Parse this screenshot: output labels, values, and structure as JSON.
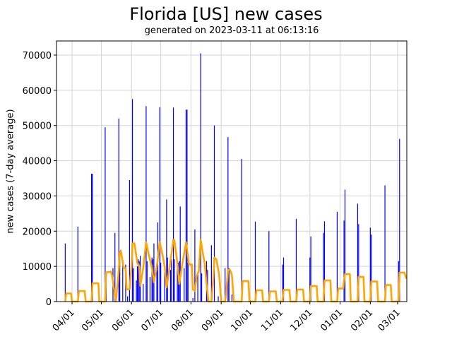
{
  "chart_data": {
    "type": "bar",
    "title": "Florida [US] new cases",
    "subtitle": "generated on 2023-03-11 at 06:13:16",
    "xlabel": "",
    "ylabel": "new cases (7-day average)",
    "ylim": [
      0,
      74000
    ],
    "grid": true,
    "legend": null,
    "x_ticks": [
      "04/01",
      "05/01",
      "06/01",
      "07/01",
      "08/01",
      "09/01",
      "10/01",
      "11/01",
      "12/01",
      "01/01",
      "02/01",
      "03/01"
    ],
    "y_ticks": [
      0,
      10000,
      20000,
      30000,
      40000,
      50000,
      60000,
      70000
    ],
    "x_range": [
      "2022-03-18",
      "2023-03-10"
    ],
    "series": [
      {
        "name": "new cases",
        "type": "bar",
        "color": "#0000ff",
        "points": [
          {
            "x": "2022-03-25",
            "y": 16500
          },
          {
            "x": "2022-04-07",
            "y": 21300
          },
          {
            "x": "2022-04-21",
            "y": 36300
          },
          {
            "x": "2022-04-22",
            "y": 36300
          },
          {
            "x": "2022-04-29",
            "y": 1000
          },
          {
            "x": "2022-05-05",
            "y": 49500
          },
          {
            "x": "2022-05-06",
            "y": 8000
          },
          {
            "x": "2022-05-13",
            "y": 9500
          },
          {
            "x": "2022-05-15",
            "y": 19500
          },
          {
            "x": "2022-05-19",
            "y": 52000
          },
          {
            "x": "2022-05-20",
            "y": 12000
          },
          {
            "x": "2022-05-23",
            "y": 11000
          },
          {
            "x": "2022-05-26",
            "y": 10500
          },
          {
            "x": "2022-05-28",
            "y": 1500
          },
          {
            "x": "2022-05-30",
            "y": 34500
          },
          {
            "x": "2022-06-02",
            "y": 57500
          },
          {
            "x": "2022-06-03",
            "y": 9500
          },
          {
            "x": "2022-06-06",
            "y": 6000
          },
          {
            "x": "2022-06-07",
            "y": 10000
          },
          {
            "x": "2022-06-08",
            "y": 12000
          },
          {
            "x": "2022-06-09",
            "y": 11500
          },
          {
            "x": "2022-06-10",
            "y": 13000
          },
          {
            "x": "2022-06-13",
            "y": 5000
          },
          {
            "x": "2022-06-16",
            "y": 55500
          },
          {
            "x": "2022-06-17",
            "y": 11500
          },
          {
            "x": "2022-06-20",
            "y": 7000
          },
          {
            "x": "2022-06-22",
            "y": 12500
          },
          {
            "x": "2022-06-23",
            "y": 12000
          },
          {
            "x": "2022-06-24",
            "y": 16500
          },
          {
            "x": "2022-06-27",
            "y": 9000
          },
          {
            "x": "2022-06-28",
            "y": 22500
          },
          {
            "x": "2022-06-30",
            "y": 55200
          },
          {
            "x": "2022-07-01",
            "y": 11000
          },
          {
            "x": "2022-07-05",
            "y": 9500
          },
          {
            "x": "2022-07-07",
            "y": 29000
          },
          {
            "x": "2022-07-08",
            "y": 12500
          },
          {
            "x": "2022-07-11",
            "y": 9000
          },
          {
            "x": "2022-07-12",
            "y": 12000
          },
          {
            "x": "2022-07-14",
            "y": 55100
          },
          {
            "x": "2022-07-15",
            "y": 12000
          },
          {
            "x": "2022-07-18",
            "y": 11500
          },
          {
            "x": "2022-07-19",
            "y": 11000
          },
          {
            "x": "2022-07-20",
            "y": 11500
          },
          {
            "x": "2022-07-21",
            "y": 27000
          },
          {
            "x": "2022-07-25",
            "y": 9500
          },
          {
            "x": "2022-07-27",
            "y": 54500
          },
          {
            "x": "2022-07-28",
            "y": 54500
          },
          {
            "x": "2022-07-29",
            "y": 11000
          },
          {
            "x": "2022-08-03",
            "y": 1000
          },
          {
            "x": "2022-08-05",
            "y": 20500
          },
          {
            "x": "2022-08-08",
            "y": 8500
          },
          {
            "x": "2022-08-11",
            "y": 70500
          },
          {
            "x": "2022-08-12",
            "y": 8000
          },
          {
            "x": "2022-08-17",
            "y": 11500
          },
          {
            "x": "2022-08-18",
            "y": 9000
          },
          {
            "x": "2022-08-22",
            "y": 16000
          },
          {
            "x": "2022-08-25",
            "y": 50000
          },
          {
            "x": "2022-08-29",
            "y": 1500
          },
          {
            "x": "2022-09-05",
            "y": 9500
          },
          {
            "x": "2022-09-08",
            "y": 46700
          },
          {
            "x": "2022-09-09",
            "y": 9500
          },
          {
            "x": "2022-09-12",
            "y": 2000
          },
          {
            "x": "2022-09-22",
            "y": 40500
          },
          {
            "x": "2022-10-06",
            "y": 22700
          },
          {
            "x": "2022-10-20",
            "y": 20000
          },
          {
            "x": "2022-11-03",
            "y": 10500
          },
          {
            "x": "2022-11-04",
            "y": 12500
          },
          {
            "x": "2022-11-17",
            "y": 23500
          },
          {
            "x": "2022-12-01",
            "y": 12500
          },
          {
            "x": "2022-12-02",
            "y": 18500
          },
          {
            "x": "2022-12-15",
            "y": 19500
          },
          {
            "x": "2022-12-16",
            "y": 22800
          },
          {
            "x": "2022-12-29",
            "y": 25500
          },
          {
            "x": "2023-01-05",
            "y": 23000
          },
          {
            "x": "2023-01-06",
            "y": 31800
          },
          {
            "x": "2023-01-19",
            "y": 27800
          },
          {
            "x": "2023-01-20",
            "y": 22000
          },
          {
            "x": "2023-02-01",
            "y": 21000
          },
          {
            "x": "2023-02-02",
            "y": 19000
          },
          {
            "x": "2023-02-16",
            "y": 33000
          },
          {
            "x": "2023-03-02",
            "y": 11500
          },
          {
            "x": "2023-03-03",
            "y": 46200
          }
        ]
      },
      {
        "name": "7-day average",
        "type": "line",
        "color": "#ffa500",
        "points": [
          {
            "x": "2022-03-25",
            "y": 0
          },
          {
            "x": "2022-03-26",
            "y": 2300
          },
          {
            "x": "2022-03-31",
            "y": 2300
          },
          {
            "x": "2022-04-01",
            "y": 0
          },
          {
            "x": "2022-04-07",
            "y": 0
          },
          {
            "x": "2022-04-08",
            "y": 3000
          },
          {
            "x": "2022-04-14",
            "y": 3000
          },
          {
            "x": "2022-04-15",
            "y": 0
          },
          {
            "x": "2022-04-21",
            "y": 0
          },
          {
            "x": "2022-04-22",
            "y": 5200
          },
          {
            "x": "2022-04-28",
            "y": 5200
          },
          {
            "x": "2022-04-29",
            "y": 0
          },
          {
            "x": "2022-05-05",
            "y": 0
          },
          {
            "x": "2022-05-06",
            "y": 8300
          },
          {
            "x": "2022-05-11",
            "y": 8500
          },
          {
            "x": "2022-05-12",
            "y": 7500
          },
          {
            "x": "2022-05-16",
            "y": 0
          },
          {
            "x": "2022-05-19",
            "y": 9000
          },
          {
            "x": "2022-05-20",
            "y": 14000
          },
          {
            "x": "2022-05-21",
            "y": 14500
          },
          {
            "x": "2022-05-24",
            "y": 9500
          },
          {
            "x": "2022-05-26",
            "y": 9500
          },
          {
            "x": "2022-05-27",
            "y": 3500
          },
          {
            "x": "2022-05-30",
            "y": 3500
          },
          {
            "x": "2022-06-01",
            "y": 10000
          },
          {
            "x": "2022-06-02",
            "y": 16500
          },
          {
            "x": "2022-06-04",
            "y": 16500
          },
          {
            "x": "2022-06-07",
            "y": 11000
          },
          {
            "x": "2022-06-09",
            "y": 10000
          },
          {
            "x": "2022-06-10",
            "y": 4500
          },
          {
            "x": "2022-06-13",
            "y": 9500
          },
          {
            "x": "2022-06-16",
            "y": 16800
          },
          {
            "x": "2022-06-19",
            "y": 13000
          },
          {
            "x": "2022-06-22",
            "y": 9500
          },
          {
            "x": "2022-06-24",
            "y": 5500
          },
          {
            "x": "2022-06-27",
            "y": 10000
          },
          {
            "x": "2022-06-30",
            "y": 16800
          },
          {
            "x": "2022-07-03",
            "y": 13000
          },
          {
            "x": "2022-07-05",
            "y": 10000
          },
          {
            "x": "2022-07-07",
            "y": 4000
          },
          {
            "x": "2022-07-10",
            "y": 9500
          },
          {
            "x": "2022-07-14",
            "y": 17500
          },
          {
            "x": "2022-07-15",
            "y": 17500
          },
          {
            "x": "2022-07-18",
            "y": 11000
          },
          {
            "x": "2022-07-20",
            "y": 5000
          },
          {
            "x": "2022-07-23",
            "y": 10500
          },
          {
            "x": "2022-07-27",
            "y": 16800
          },
          {
            "x": "2022-07-30",
            "y": 10500
          },
          {
            "x": "2022-08-02",
            "y": 10500
          },
          {
            "x": "2022-08-03",
            "y": 3500
          },
          {
            "x": "2022-08-05",
            "y": 3000
          },
          {
            "x": "2022-08-07",
            "y": 7500
          },
          {
            "x": "2022-08-09",
            "y": 8500
          },
          {
            "x": "2022-08-11",
            "y": 17500
          },
          {
            "x": "2022-08-13",
            "y": 14000
          },
          {
            "x": "2022-08-15",
            "y": 11000
          },
          {
            "x": "2022-08-17",
            "y": 5000
          },
          {
            "x": "2022-08-19",
            "y": 0
          },
          {
            "x": "2022-08-22",
            "y": 0
          },
          {
            "x": "2022-08-24",
            "y": 7000
          },
          {
            "x": "2022-08-25",
            "y": 12500
          },
          {
            "x": "2022-08-27",
            "y": 12000
          },
          {
            "x": "2022-08-30",
            "y": 7500
          },
          {
            "x": "2022-09-01",
            "y": 0
          },
          {
            "x": "2022-09-05",
            "y": 0
          },
          {
            "x": "2022-09-06",
            "y": 2000
          },
          {
            "x": "2022-09-08",
            "y": 9000
          },
          {
            "x": "2022-09-10",
            "y": 9000
          },
          {
            "x": "2022-09-12",
            "y": 7500
          },
          {
            "x": "2022-09-14",
            "y": 0
          },
          {
            "x": "2022-09-22",
            "y": 0
          },
          {
            "x": "2022-09-23",
            "y": 5800
          },
          {
            "x": "2022-09-29",
            "y": 5800
          },
          {
            "x": "2022-09-30",
            "y": 0
          },
          {
            "x": "2022-10-06",
            "y": 0
          },
          {
            "x": "2022-10-07",
            "y": 3200
          },
          {
            "x": "2022-10-13",
            "y": 3200
          },
          {
            "x": "2022-10-14",
            "y": 0
          },
          {
            "x": "2022-10-20",
            "y": 0
          },
          {
            "x": "2022-10-21",
            "y": 2900
          },
          {
            "x": "2022-10-27",
            "y": 2900
          },
          {
            "x": "2022-10-28",
            "y": 0
          },
          {
            "x": "2022-11-03",
            "y": 0
          },
          {
            "x": "2022-11-04",
            "y": 3300
          },
          {
            "x": "2022-11-10",
            "y": 3300
          },
          {
            "x": "2022-11-11",
            "y": 0
          },
          {
            "x": "2022-11-17",
            "y": 0
          },
          {
            "x": "2022-11-18",
            "y": 3400
          },
          {
            "x": "2022-11-24",
            "y": 3400
          },
          {
            "x": "2022-11-25",
            "y": 0
          },
          {
            "x": "2022-12-01",
            "y": 0
          },
          {
            "x": "2022-12-02",
            "y": 4400
          },
          {
            "x": "2022-12-08",
            "y": 4400
          },
          {
            "x": "2022-12-09",
            "y": 0
          },
          {
            "x": "2022-12-15",
            "y": 0
          },
          {
            "x": "2022-12-16",
            "y": 6000
          },
          {
            "x": "2022-12-22",
            "y": 6000
          },
          {
            "x": "2022-12-23",
            "y": 0
          },
          {
            "x": "2022-12-29",
            "y": 0
          },
          {
            "x": "2022-12-30",
            "y": 3700
          },
          {
            "x": "2023-01-04",
            "y": 3700
          },
          {
            "x": "2023-01-06",
            "y": 7800
          },
          {
            "x": "2023-01-11",
            "y": 7800
          },
          {
            "x": "2023-01-12",
            "y": 0
          },
          {
            "x": "2023-01-19",
            "y": 0
          },
          {
            "x": "2023-01-20",
            "y": 7000
          },
          {
            "x": "2023-01-25",
            "y": 7000
          },
          {
            "x": "2023-01-26",
            "y": 0
          },
          {
            "x": "2023-02-01",
            "y": 0
          },
          {
            "x": "2023-02-02",
            "y": 5700
          },
          {
            "x": "2023-02-08",
            "y": 5700
          },
          {
            "x": "2023-02-09",
            "y": 0
          },
          {
            "x": "2023-02-16",
            "y": 0
          },
          {
            "x": "2023-02-17",
            "y": 4700
          },
          {
            "x": "2023-02-22",
            "y": 4700
          },
          {
            "x": "2023-02-23",
            "y": 0
          },
          {
            "x": "2023-03-02",
            "y": 0
          },
          {
            "x": "2023-03-03",
            "y": 8200
          },
          {
            "x": "2023-03-08",
            "y": 8200
          },
          {
            "x": "2023-03-10",
            "y": 6500
          }
        ]
      }
    ]
  }
}
